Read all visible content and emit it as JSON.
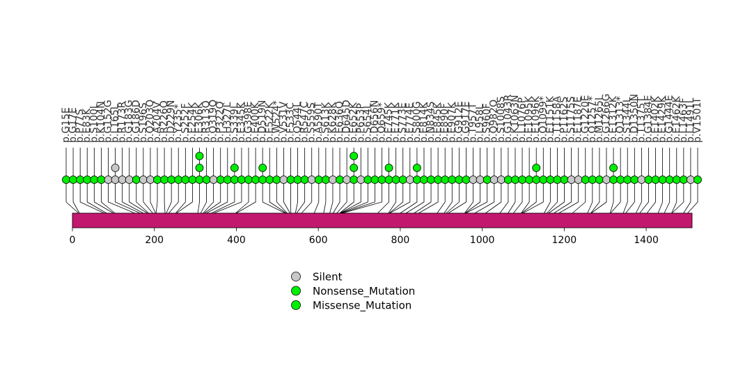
{
  "chart_data": {
    "type": "lollipop",
    "xlim": [
      0,
      1520
    ],
    "x_ticks": [
      0,
      200,
      400,
      600,
      800,
      1000,
      1200,
      1400
    ],
    "protein": {
      "start": 0,
      "end": 1512,
      "color": "#C2186E"
    },
    "colors": {
      "Silent": "#C8C8C8",
      "Nonsense_Mutation": "#00EE00",
      "Missense_Mutation": "#00EE00"
    },
    "legend": [
      {
        "name": "Silent",
        "color": "#C8C8C8"
      },
      {
        "name": "Nonsense_Mutation",
        "color": "#00EE00"
      },
      {
        "name": "Missense_Mutation",
        "color": "#00EE00"
      }
    ],
    "mutations": [
      {
        "label": "p.G15E",
        "pos": 15,
        "type": "Missense_Mutation",
        "count": 1
      },
      {
        "label": "p.G17E",
        "pos": 17,
        "type": "Missense_Mutation",
        "count": 1
      },
      {
        "label": "p.P77S",
        "pos": 77,
        "type": "Missense_Mutation",
        "count": 1
      },
      {
        "label": "p.E83K",
        "pos": 83,
        "type": "Missense_Mutation",
        "count": 1
      },
      {
        "label": "p.S100L",
        "pos": 100,
        "type": "Missense_Mutation",
        "count": 1
      },
      {
        "label": "p.K104N",
        "pos": 104,
        "type": "Missense_Mutation",
        "count": 1
      },
      {
        "label": "p.G152G",
        "pos": 152,
        "type": "Silent",
        "count": 1
      },
      {
        "label": "p.L165L",
        "pos": 165,
        "type": "Silent",
        "count": 2
      },
      {
        "label": "p.R173R",
        "pos": 173,
        "type": "Silent",
        "count": 1
      },
      {
        "label": "p.G183G",
        "pos": 183,
        "type": "Silent",
        "count": 1
      },
      {
        "label": "p.G186D",
        "pos": 186,
        "type": "Missense_Mutation",
        "count": 1
      },
      {
        "label": "p.S196S",
        "pos": 196,
        "type": "Silent",
        "count": 1
      },
      {
        "label": "p.Q203Q",
        "pos": 203,
        "type": "Silent",
        "count": 1
      },
      {
        "label": "p.A204V",
        "pos": 204,
        "type": "Missense_Mutation",
        "count": 1
      },
      {
        "label": "p.R226Q",
        "pos": 226,
        "type": "Missense_Mutation",
        "count": 1
      },
      {
        "label": "p.D229N",
        "pos": 229,
        "type": "Missense_Mutation",
        "count": 1
      },
      {
        "label": "p.Y235*",
        "pos": 235,
        "type": "Nonsense_Mutation",
        "count": 1
      },
      {
        "label": "p.S252F",
        "pos": 252,
        "type": "Missense_Mutation",
        "count": 1
      },
      {
        "label": "p.E254K",
        "pos": 254,
        "type": "Missense_Mutation",
        "count": 1
      },
      {
        "label": "p.E306K",
        "pos": 306,
        "type": "Missense_Mutation",
        "count": 3
      },
      {
        "label": "p.R313Q",
        "pos": 313,
        "type": "Missense_Mutation",
        "count": 1
      },
      {
        "label": "p.Q319Q",
        "pos": 319,
        "type": "Silent",
        "count": 1
      },
      {
        "label": "p.P322Q",
        "pos": 322,
        "type": "Missense_Mutation",
        "count": 1
      },
      {
        "label": "p.H327L",
        "pos": 327,
        "type": "Missense_Mutation",
        "count": 1
      },
      {
        "label": "p.S339L",
        "pos": 339,
        "type": "Missense_Mutation",
        "count": 2
      },
      {
        "label": "p.E345K",
        "pos": 345,
        "type": "Missense_Mutation",
        "count": 1
      },
      {
        "label": "p.G398E",
        "pos": 398,
        "type": "Missense_Mutation",
        "count": 1
      },
      {
        "label": "p.E400K",
        "pos": 400,
        "type": "Missense_Mutation",
        "count": 1
      },
      {
        "label": "p.D519N",
        "pos": 519,
        "type": "Missense_Mutation",
        "count": 2
      },
      {
        "label": "p.E522K",
        "pos": 522,
        "type": "Missense_Mutation",
        "count": 1
      },
      {
        "label": "p.W524*",
        "pos": 524,
        "type": "Nonsense_Mutation",
        "count": 1
      },
      {
        "label": "p.V531V",
        "pos": 531,
        "type": "Silent",
        "count": 1
      },
      {
        "label": "p.F533C",
        "pos": 533,
        "type": "Missense_Mutation",
        "count": 1
      },
      {
        "label": "p.Q544L",
        "pos": 544,
        "type": "Missense_Mutation",
        "count": 1
      },
      {
        "label": "p.R547C",
        "pos": 547,
        "type": "Missense_Mutation",
        "count": 1
      },
      {
        "label": "p.S559S",
        "pos": 559,
        "type": "Silent",
        "count": 1
      },
      {
        "label": "p.A590T",
        "pos": 590,
        "type": "Missense_Mutation",
        "count": 1
      },
      {
        "label": "p.S613K",
        "pos": 613,
        "type": "Missense_Mutation",
        "count": 1
      },
      {
        "label": "p.K628K",
        "pos": 628,
        "type": "Silent",
        "count": 1
      },
      {
        "label": "p.E636Q",
        "pos": 636,
        "type": "Missense_Mutation",
        "count": 1
      },
      {
        "label": "p.D645D",
        "pos": 645,
        "type": "Silent",
        "count": 1
      },
      {
        "label": "p.E652K",
        "pos": 652,
        "type": "Missense_Mutation",
        "count": 3
      },
      {
        "label": "p.P653P",
        "pos": 653,
        "type": "Silent",
        "count": 1
      },
      {
        "label": "p.S654L",
        "pos": 654,
        "type": "Missense_Mutation",
        "count": 1
      },
      {
        "label": "p.D656N",
        "pos": 656,
        "type": "Missense_Mutation",
        "count": 1
      },
      {
        "label": "p.Q659*",
        "pos": 659,
        "type": "Nonsense_Mutation",
        "count": 1
      },
      {
        "label": "p.E745K",
        "pos": 745,
        "type": "Missense_Mutation",
        "count": 2
      },
      {
        "label": "p.E771K",
        "pos": 771,
        "type": "Missense_Mutation",
        "count": 1
      },
      {
        "label": "p.S773E",
        "pos": 773,
        "type": "Missense_Mutation",
        "count": 1
      },
      {
        "label": "p.E774E",
        "pos": 774,
        "type": "Silent",
        "count": 1
      },
      {
        "label": "p.S800G",
        "pos": 800,
        "type": "Missense_Mutation",
        "count": 2
      },
      {
        "label": "p.E814K",
        "pos": 814,
        "type": "Missense_Mutation",
        "count": 1
      },
      {
        "label": "p.N834S",
        "pos": 834,
        "type": "Missense_Mutation",
        "count": 1
      },
      {
        "label": "p.E845K",
        "pos": 845,
        "type": "Missense_Mutation",
        "count": 1
      },
      {
        "label": "p.E890F",
        "pos": 890,
        "type": "Missense_Mutation",
        "count": 1
      },
      {
        "label": "p.E907K",
        "pos": 907,
        "type": "Missense_Mutation",
        "count": 1
      },
      {
        "label": "p.G912E",
        "pos": 912,
        "type": "Missense_Mutation",
        "count": 1
      },
      {
        "label": "p.G917E",
        "pos": 917,
        "type": "Missense_Mutation",
        "count": 1
      },
      {
        "label": "p.T957T",
        "pos": 957,
        "type": "Silent",
        "count": 1
      },
      {
        "label": "p.L958L",
        "pos": 958,
        "type": "Silent",
        "count": 1
      },
      {
        "label": "p.S960F",
        "pos": 960,
        "type": "Missense_Mutation",
        "count": 1
      },
      {
        "label": "p.Q982Q",
        "pos": 982,
        "type": "Silent",
        "count": 1
      },
      {
        "label": "p.S1008S",
        "pos": 1008,
        "type": "Silent",
        "count": 1
      },
      {
        "label": "p.G1043R",
        "pos": 1043,
        "type": "Missense_Mutation",
        "count": 1
      },
      {
        "label": "p.K1063N",
        "pos": 1063,
        "type": "Missense_Mutation",
        "count": 1
      },
      {
        "label": "p.L1076P",
        "pos": 1076,
        "type": "Missense_Mutation",
        "count": 1
      },
      {
        "label": "p.E1095K",
        "pos": 1095,
        "type": "Missense_Mutation",
        "count": 1
      },
      {
        "label": "p.E1096K",
        "pos": 1096,
        "type": "Missense_Mutation",
        "count": 2
      },
      {
        "label": "p.Q1099*",
        "pos": 1099,
        "type": "Nonsense_Mutation",
        "count": 1
      },
      {
        "label": "p.E1151K",
        "pos": 1151,
        "type": "Missense_Mutation",
        "count": 1
      },
      {
        "label": "p.T1158A",
        "pos": 1158,
        "type": "Missense_Mutation",
        "count": 1
      },
      {
        "label": "p.P1162S",
        "pos": 1162,
        "type": "Missense_Mutation",
        "count": 1
      },
      {
        "label": "p.S1175S",
        "pos": 1175,
        "type": "Silent",
        "count": 1
      },
      {
        "label": "p.E1187E",
        "pos": 1187,
        "type": "Silent",
        "count": 1
      },
      {
        "label": "p.G1220E",
        "pos": 1220,
        "type": "Missense_Mutation",
        "count": 1
      },
      {
        "label": "p.Q1257*",
        "pos": 1257,
        "type": "Nonsense_Mutation",
        "count": 1
      },
      {
        "label": "p.M1265I",
        "pos": 1265,
        "type": "Missense_Mutation",
        "count": 1
      },
      {
        "label": "p.G1266G",
        "pos": 1266,
        "type": "Silent",
        "count": 1
      },
      {
        "label": "p.E1312K",
        "pos": 1312,
        "type": "Missense_Mutation",
        "count": 2
      },
      {
        "label": "p.Q1313*",
        "pos": 1313,
        "type": "Nonsense_Mutation",
        "count": 1
      },
      {
        "label": "p.S1344L",
        "pos": 1344,
        "type": "Missense_Mutation",
        "count": 1
      },
      {
        "label": "p.D1350N",
        "pos": 1350,
        "type": "Missense_Mutation",
        "count": 1
      },
      {
        "label": "p.T1375T",
        "pos": 1375,
        "type": "Silent",
        "count": 1
      },
      {
        "label": "p.G1384E",
        "pos": 1384,
        "type": "Missense_Mutation",
        "count": 1
      },
      {
        "label": "p.E1402K",
        "pos": 1402,
        "type": "Missense_Mutation",
        "count": 1
      },
      {
        "label": "p.E1429K",
        "pos": 1429,
        "type": "Missense_Mutation",
        "count": 1
      },
      {
        "label": "p.G1444E",
        "pos": 1444,
        "type": "Missense_Mutation",
        "count": 1
      },
      {
        "label": "p.E1462K",
        "pos": 1462,
        "type": "Missense_Mutation",
        "count": 1
      },
      {
        "label": "p.L1463F",
        "pos": 1463,
        "type": "Missense_Mutation",
        "count": 1
      },
      {
        "label": "p.L1491L",
        "pos": 1491,
        "type": "Silent",
        "count": 1
      },
      {
        "label": "p.V1501I",
        "pos": 1501,
        "type": "Missense_Mutation",
        "count": 1
      }
    ]
  }
}
